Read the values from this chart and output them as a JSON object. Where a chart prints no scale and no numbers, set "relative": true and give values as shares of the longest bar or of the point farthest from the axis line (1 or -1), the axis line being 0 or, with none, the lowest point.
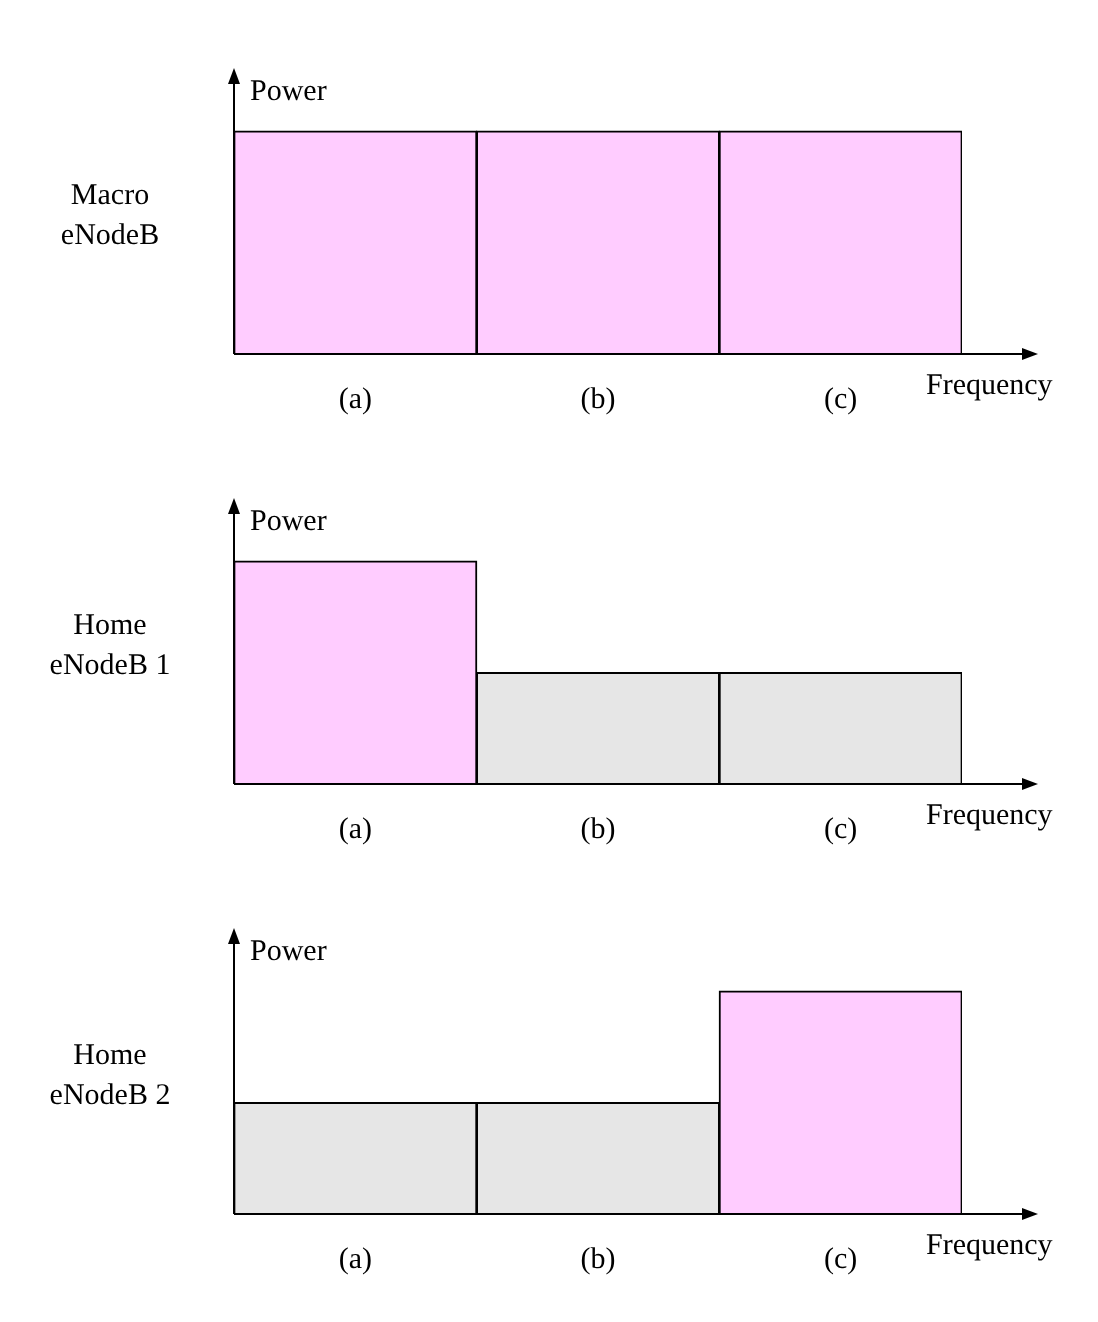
{
  "chart_data": [
    {
      "type": "bar",
      "title": "Macro eNodeB",
      "categories": [
        "(a)",
        "(b)",
        "(c)"
      ],
      "values": [
        1,
        1,
        1
      ],
      "colors": [
        "#ffccff",
        "#ffccff",
        "#ffccff"
      ],
      "relative": true,
      "xlabel": "Frequency",
      "ylabel": "Power",
      "legend": false,
      "grid": false
    },
    {
      "type": "bar",
      "title": "Home eNodeB 1",
      "categories": [
        "(a)",
        "(b)",
        "(c)"
      ],
      "values": [
        1,
        0.5,
        0.5
      ],
      "colors": [
        "#ffccff",
        "#e6e6e6",
        "#e6e6e6"
      ],
      "relative": true,
      "xlabel": "Frequency",
      "ylabel": "Power",
      "legend": false,
      "grid": false
    },
    {
      "type": "bar",
      "title": "Home eNodeB 2",
      "categories": [
        "(a)",
        "(b)",
        "(c)"
      ],
      "values": [
        0.5,
        0.5,
        1
      ],
      "colors": [
        "#e6e6e6",
        "#e6e6e6",
        "#ffccff"
      ],
      "relative": true,
      "xlabel": "Frequency",
      "ylabel": "Power",
      "legend": false,
      "grid": false
    }
  ]
}
